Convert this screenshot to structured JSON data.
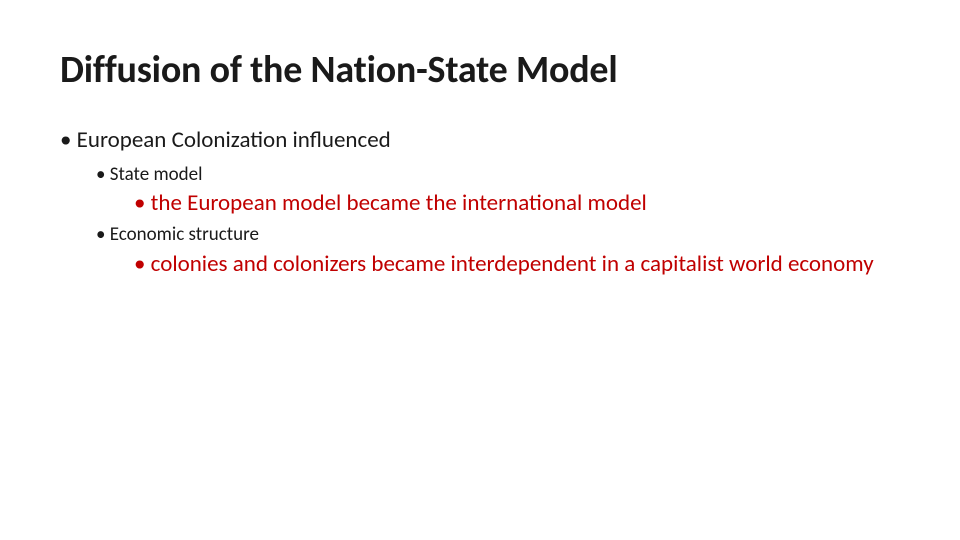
{
  "slide": {
    "title": "Diffusion of the Nation-State Model",
    "background_color": "#ffffff",
    "title_color": "#1a1a1a",
    "body_color": "#1a1a1a",
    "accent_color": "#c00000",
    "title_fontsize": 38,
    "level1_fontsize": 23,
    "level2_fontsize": 19,
    "level3_fontsize": 23,
    "bullets": {
      "item1": "European Colonization influenced",
      "item1_sub1": "State model",
      "item1_sub1_detail": "the European model became the international model",
      "item1_sub2": "Economic structure",
      "item1_sub2_detail": "colonies and colonizers became interdependent in a capitalist world economy"
    }
  }
}
